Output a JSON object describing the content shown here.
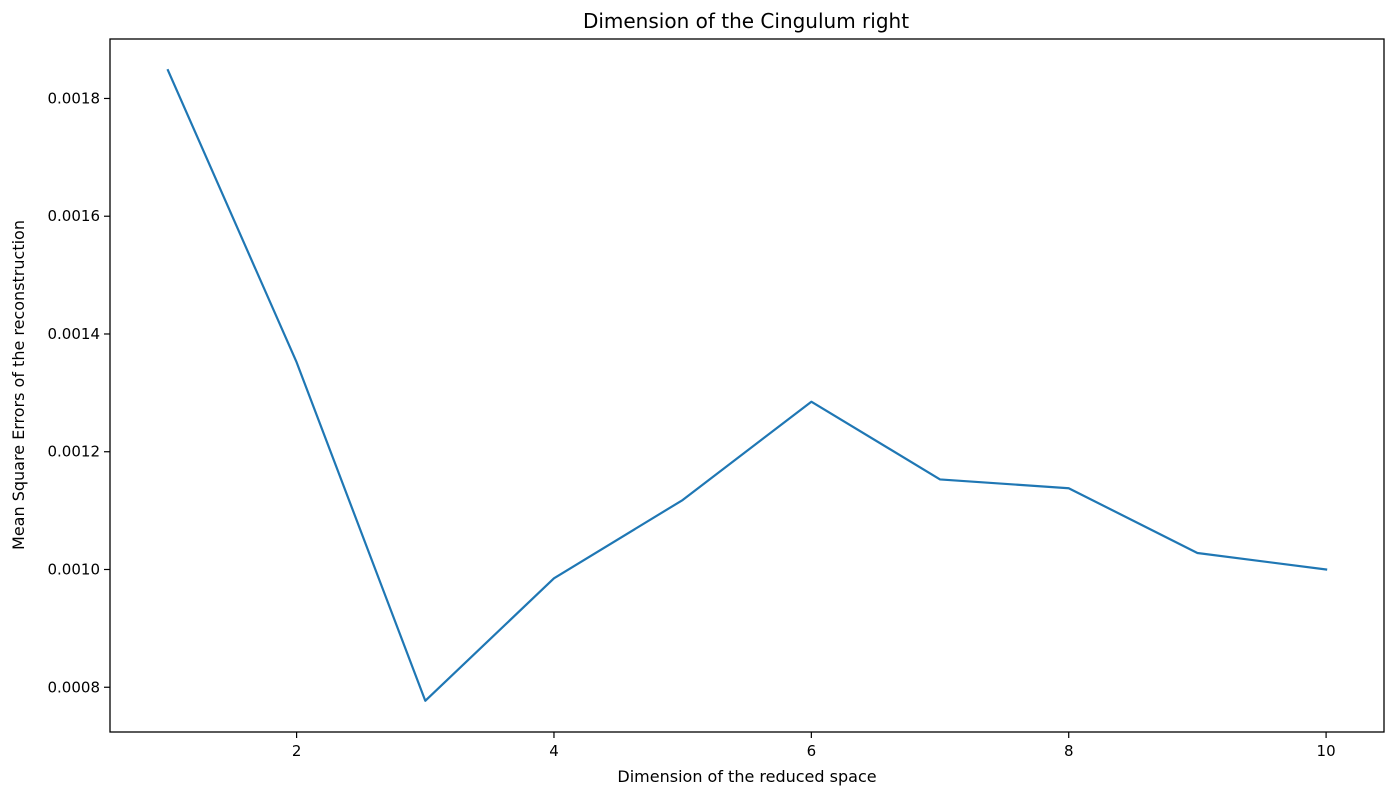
{
  "chart_data": {
    "type": "line",
    "title": "Dimension of the Cingulum right",
    "xlabel": "Dimension of the reduced space",
    "ylabel": "Mean Square Errors of the reconstruction",
    "x": [
      1,
      2,
      3,
      4,
      5,
      6,
      7,
      8,
      9,
      10
    ],
    "series": [
      {
        "values": [
          0.001848,
          0.001352,
          0.000777,
          0.000985,
          0.001118,
          0.001285,
          0.001153,
          0.001138,
          0.001028,
          0.001
        ],
        "color": "#1f77b4"
      }
    ],
    "xlim": [
      0.55,
      10.45
    ],
    "ylim": [
      0.000724,
      0.001901
    ],
    "xticks": [
      2,
      4,
      6,
      8,
      10
    ],
    "xtick_labels": [
      "2",
      "4",
      "6",
      "8",
      "10"
    ],
    "yticks": [
      0.0008,
      0.001,
      0.0012,
      0.0014,
      0.0016,
      0.0018
    ],
    "ytick_labels": [
      "0.0008",
      "0.0010",
      "0.0012",
      "0.0014",
      "0.0016",
      "0.0018"
    ],
    "grid": false,
    "legend": false
  }
}
